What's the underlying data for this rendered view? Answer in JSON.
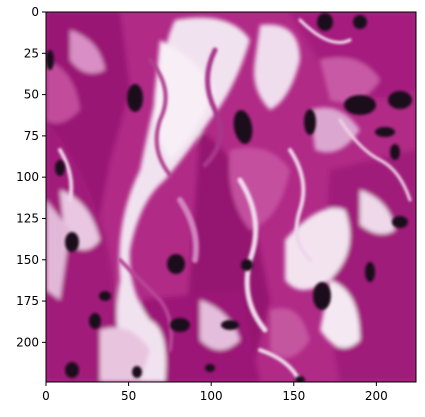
{
  "image": {
    "description_icon": "histology-tissue-image",
    "x_range": [
      0,
      224
    ],
    "y_range": [
      0,
      224
    ],
    "x_ticks": [
      0,
      50,
      100,
      150,
      200
    ],
    "y_ticks": [
      0,
      25,
      50,
      75,
      100,
      125,
      150,
      175,
      200
    ],
    "colors": {
      "background": "#f2e6f0",
      "stroma_light": "#e8c2e0",
      "stroma_pink": "#c8509e",
      "stroma_magenta": "#a81a7e",
      "stroma_deep": "#7a0d5c",
      "nucleus": "#1e0a1c"
    }
  }
}
